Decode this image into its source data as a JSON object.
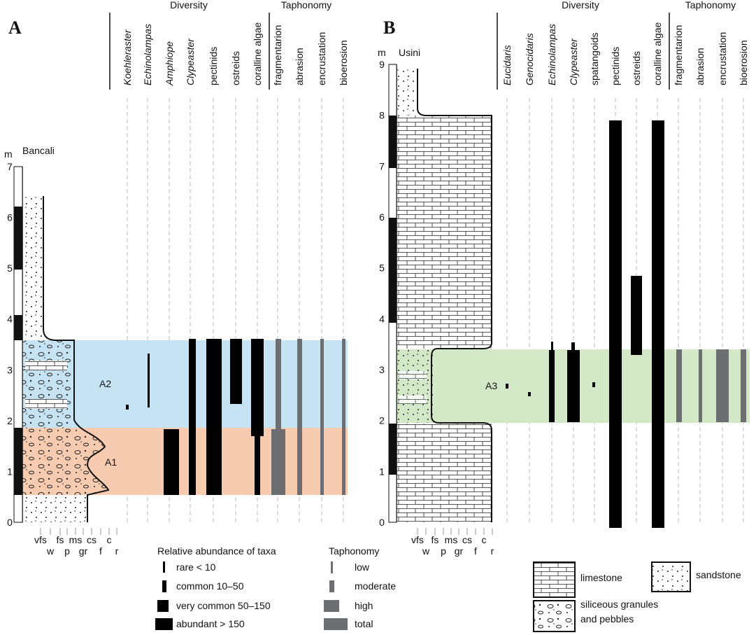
{
  "panel_a": {
    "label": "A",
    "section": "Bancali",
    "unit": "m",
    "depth_ticks": [
      0,
      1,
      2,
      3,
      4,
      5,
      6,
      7
    ],
    "group_diversity": "Diversity",
    "group_taphonomy": "Taphonomy",
    "diversity_columns": [
      "Koehleraster",
      "Echinolampas",
      "Amphiope",
      "Clypeaster",
      "pectinids",
      "ostreids",
      "coralline algae"
    ],
    "taphonomy_columns": [
      "fragmentarion",
      "abrasion",
      "encrustation",
      "bioerosion"
    ],
    "units": [
      "A2",
      "A1"
    ],
    "grain_top": [
      "vfs",
      "fs",
      "ms",
      "cs",
      "c"
    ],
    "grain_bottom": [
      "w",
      "p",
      "gr",
      "f",
      "r"
    ]
  },
  "panel_b": {
    "label": "B",
    "section": "Usini",
    "unit": "m",
    "depth_ticks": [
      0,
      1,
      2,
      3,
      4,
      5,
      6,
      7,
      8,
      9
    ],
    "group_diversity": "Diversity",
    "group_taphonomy": "Taphonomy",
    "diversity_columns": [
      "Eucidaris",
      "Genocidaris",
      "Echinolampas",
      "Clypeaster",
      "spatangoids",
      "pectinids",
      "ostreids",
      "coralline algae"
    ],
    "taphonomy_columns": [
      "fragmentarion",
      "abrasion",
      "encrustation",
      "bioerosion"
    ],
    "units": [
      "A3"
    ],
    "grain_top": [
      "vfs",
      "fs",
      "ms",
      "cs",
      "c"
    ],
    "grain_bottom": [
      "w",
      "p",
      "gr",
      "f",
      "r"
    ]
  },
  "legend": {
    "abundance_title": "Relative abundance of taxa",
    "abundance": [
      "rare < 10",
      "common 10–50",
      "very common 50–150",
      "abundant > 150"
    ],
    "taphonomy_title": "Taphonomy",
    "taphonomy": [
      "low",
      "moderate",
      "high",
      "total"
    ],
    "lithology": [
      "limestone",
      "sandstone",
      "siliceous granules",
      "and pebbles"
    ]
  }
}
